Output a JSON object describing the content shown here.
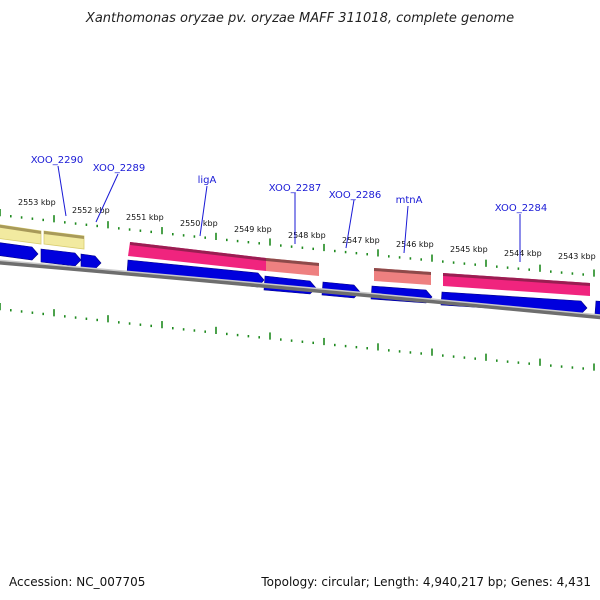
{
  "title": "Xanthomonas oryzae pv. oryzae MAFF 311018, complete genome",
  "footer": {
    "accession": "Accession: NC_007705",
    "info": "Topology: circular; Length: 4,940,217 bp; Genes: 4,431"
  },
  "ticks": [
    {
      "label": "2553 kbp"
    },
    {
      "label": "2552 kbp"
    },
    {
      "label": "2551 kbp"
    },
    {
      "label": "2550 kbp"
    },
    {
      "label": "2549 kbp"
    },
    {
      "label": "2548 kbp"
    },
    {
      "label": "2547 kbp"
    },
    {
      "label": "2546 kbp"
    },
    {
      "label": "2545 kbp"
    },
    {
      "label": "2544 kbp"
    },
    {
      "label": "2543 kbp"
    }
  ],
  "genes": [
    {
      "name": "XOO_2290"
    },
    {
      "name": "XOO_2289"
    },
    {
      "name": "ligA"
    },
    {
      "name": "XOO_2287"
    },
    {
      "name": "XOO_2286"
    },
    {
      "name": "mtnA"
    },
    {
      "name": "XOO_2284"
    }
  ],
  "colors": {
    "cds_arrow": "#0000dd",
    "feature_yellow": "#f2eaa0",
    "feature_magenta": "#f0247e",
    "feature_salmon": "#ee8080",
    "tick_green": "#1f8a1f",
    "gene_label": "#1a1ad6",
    "backbone": "#6e6e6e"
  }
}
